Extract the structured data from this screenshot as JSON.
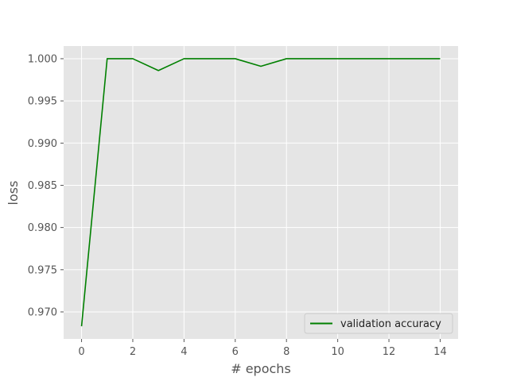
{
  "chart_data": {
    "type": "line",
    "xlabel": "# epochs",
    "ylabel": "loss",
    "xlim": [
      -0.7,
      14.7
    ],
    "ylim": [
      0.9668,
      1.0015
    ],
    "xticks": [
      0,
      2,
      4,
      6,
      8,
      10,
      12,
      14
    ],
    "yticks": [
      0.97,
      0.975,
      0.98,
      0.985,
      0.99,
      0.995,
      1.0
    ],
    "xtick_labels": [
      "0",
      "2",
      "4",
      "6",
      "8",
      "10",
      "12",
      "14"
    ],
    "ytick_labels": [
      "0.970",
      "0.975",
      "0.980",
      "0.985",
      "0.990",
      "0.995",
      "1.000"
    ],
    "grid": true,
    "legend_position": "lower-right",
    "series": [
      {
        "name": "validation accuracy",
        "color": "#008000",
        "x": [
          0,
          1,
          2,
          3,
          4,
          5,
          6,
          7,
          8,
          9,
          10,
          11,
          12,
          13,
          14
        ],
        "y": [
          0.9683,
          1.0,
          1.0,
          0.9986,
          1.0,
          1.0,
          1.0,
          0.9991,
          1.0,
          1.0,
          1.0,
          1.0,
          1.0,
          1.0,
          1.0
        ]
      }
    ]
  }
}
